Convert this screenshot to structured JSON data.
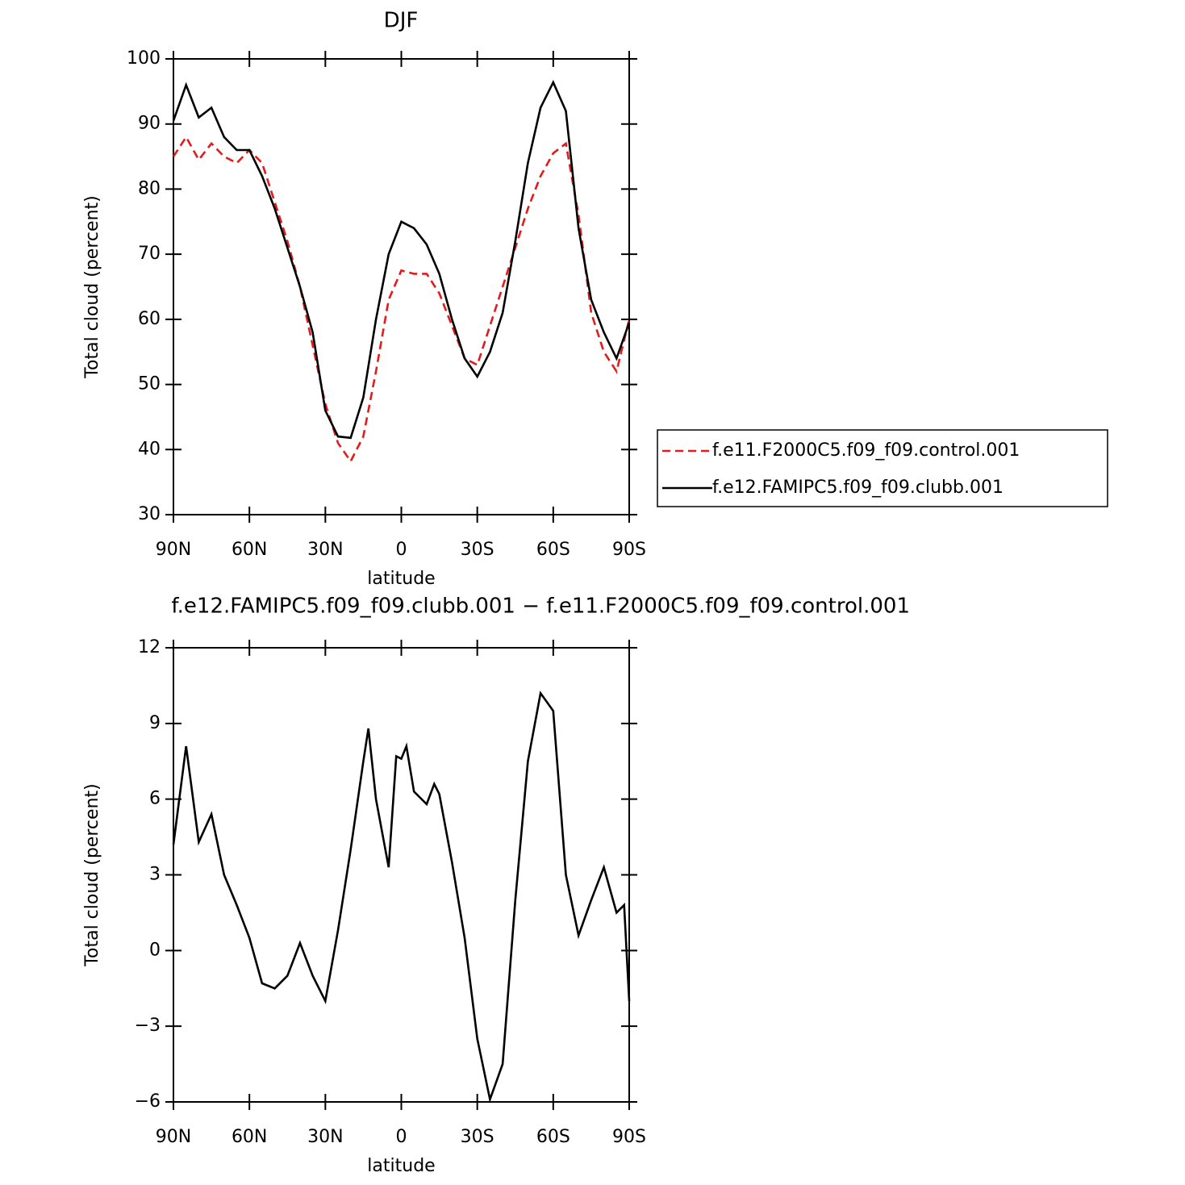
{
  "chart_data": [
    {
      "type": "line",
      "title": "DJF",
      "xlabel": "latitude",
      "ylabel": "Total cloud (percent)",
      "x": [
        90,
        85,
        80,
        75,
        70,
        65,
        60,
        55,
        50,
        45,
        40,
        35,
        30,
        25,
        20,
        15,
        10,
        5,
        0,
        -5,
        -10,
        -15,
        -20,
        -25,
        -30,
        -35,
        -40,
        -45,
        -50,
        -55,
        -60,
        -65,
        -70,
        -75,
        -80,
        -85,
        -90
      ],
      "series": [
        {
          "name": "f.e11.F2000C5.f09_f09.control.001",
          "color": "#e41a1c",
          "dash": true,
          "values": [
            85,
            88,
            84.5,
            87,
            85,
            84,
            86,
            84,
            78,
            72,
            65,
            56,
            47,
            41,
            38.2,
            42,
            52,
            63,
            67.5,
            67,
            67,
            64,
            59,
            54,
            53,
            59,
            65,
            71,
            77,
            82,
            85.5,
            87,
            76,
            61,
            55,
            52,
            60
          ]
        },
        {
          "name": "f.e12.FAMIPC5.f09_f09.clubb.001",
          "color": "#000000",
          "dash": false,
          "values": [
            90.5,
            96,
            91,
            92.5,
            88,
            86,
            86,
            82,
            77,
            71,
            65,
            58,
            46,
            42,
            41.8,
            48,
            60,
            70,
            75,
            74,
            71.5,
            67,
            60,
            54,
            51.2,
            55,
            61,
            72,
            84,
            92.5,
            96.4,
            92,
            74,
            63,
            58,
            54,
            59.5
          ]
        }
      ],
      "xlim": [
        90,
        -90
      ],
      "xticks": [
        {
          "value": 90,
          "label": "90N"
        },
        {
          "value": 60,
          "label": "60N"
        },
        {
          "value": 30,
          "label": "30N"
        },
        0,
        {
          "value": -30,
          "label": "30S"
        },
        {
          "value": -60,
          "label": "60S"
        },
        {
          "value": -90,
          "label": "90S"
        }
      ],
      "ylim": [
        30,
        100
      ],
      "yticks": [
        30,
        40,
        50,
        60,
        70,
        80,
        90,
        100
      ],
      "legend": "right"
    },
    {
      "type": "line",
      "title": "f.e12.FAMIPC5.f09_f09.clubb.001 − f.e11.F2000C5.f09_f09.control.001",
      "xlabel": "latitude",
      "ylabel": "Total cloud (percent)",
      "x": [
        90,
        85,
        80,
        75,
        70,
        65,
        60,
        55,
        50,
        45,
        40,
        35,
        30,
        25,
        20,
        15,
        13,
        10,
        5,
        2,
        0,
        -2,
        -5,
        -10,
        -13,
        -15,
        -20,
        -25,
        -30,
        -35,
        -40,
        -45,
        -50,
        -55,
        -60,
        -65,
        -70,
        -75,
        -80,
        -85,
        -88,
        -90
      ],
      "series": [
        {
          "color": "#000000",
          "dash": false,
          "values": [
            4.2,
            8.1,
            4.3,
            5.4,
            3.0,
            1.8,
            0.5,
            -1.3,
            -1.5,
            -1.0,
            0.3,
            -1.0,
            -2.0,
            0.8,
            4.0,
            7.5,
            8.8,
            6.0,
            3.3,
            7.7,
            7.6,
            8.1,
            6.3,
            5.8,
            6.6,
            6.2,
            3.5,
            0.5,
            -3.5,
            -5.9,
            -4.5,
            2.0,
            7.5,
            10.2,
            9.5,
            3.0,
            0.6,
            2.0,
            3.3,
            1.5,
            1.8,
            -2.0
          ]
        }
      ],
      "xlim": [
        90,
        -90
      ],
      "xticks": [
        {
          "value": 90,
          "label": "90N"
        },
        {
          "value": 60,
          "label": "60N"
        },
        {
          "value": 30,
          "label": "30N"
        },
        0,
        {
          "value": -30,
          "label": "30S"
        },
        {
          "value": -60,
          "label": "60S"
        },
        {
          "value": -90,
          "label": "90S"
        }
      ],
      "ylim": [
        -6,
        12
      ],
      "yticks": [
        {
          "value": -6,
          "label": "−6"
        },
        {
          "value": -3,
          "label": "−3"
        },
        0,
        3,
        6,
        9,
        12
      ]
    }
  ]
}
